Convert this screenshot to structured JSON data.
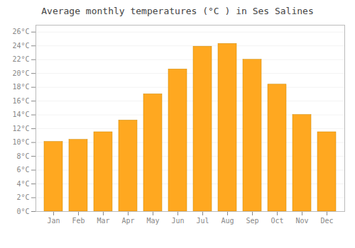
{
  "chart_data": {
    "type": "bar",
    "title": "Average monthly temperatures (°C ) in Ses Salines",
    "categories": [
      "Jan",
      "Feb",
      "Mar",
      "Apr",
      "May",
      "Jun",
      "Jul",
      "Aug",
      "Sep",
      "Oct",
      "Nov",
      "Dec"
    ],
    "values": [
      10.1,
      10.4,
      11.5,
      13.2,
      17.0,
      20.6,
      23.9,
      24.3,
      22.0,
      18.4,
      14.0,
      11.5
    ],
    "color": "#FFA820",
    "ylim": [
      0,
      27
    ],
    "yticks": [
      {
        "value": 0,
        "label": "0°C"
      },
      {
        "value": 2,
        "label": "2°C"
      },
      {
        "value": 4,
        "label": "4°C"
      },
      {
        "value": 6,
        "label": "6°C"
      },
      {
        "value": 8,
        "label": "8°C"
      },
      {
        "value": 10,
        "label": "10°C"
      },
      {
        "value": 12,
        "label": "12°C"
      },
      {
        "value": 14,
        "label": "14°C"
      },
      {
        "value": 16,
        "label": "16°C"
      },
      {
        "value": 18,
        "label": "18°C"
      },
      {
        "value": 20,
        "label": "20°C"
      },
      {
        "value": 22,
        "label": "22°C"
      },
      {
        "value": 24,
        "label": "24°C"
      },
      {
        "value": 26,
        "label": "26°C"
      }
    ],
    "grid": true
  }
}
